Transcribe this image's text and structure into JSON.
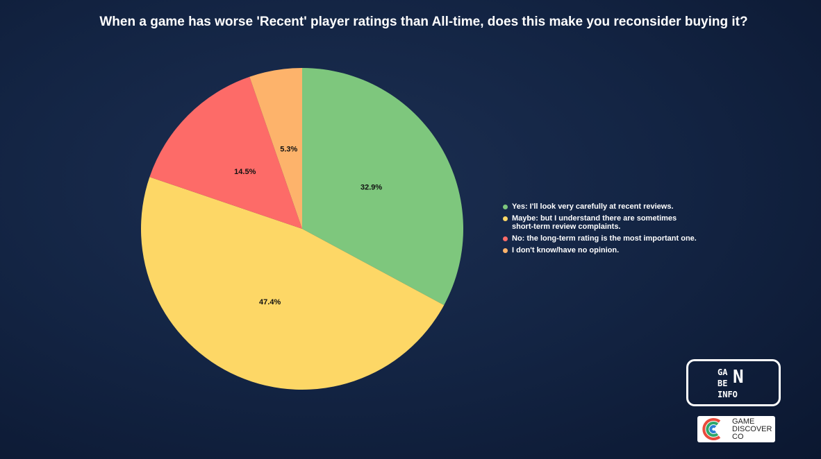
{
  "chart_data": {
    "type": "pie",
    "title": "When a game has worse 'Recent' player ratings than All-time, does this make you reconsider buying it?",
    "categories": [
      "Yes: I'll look very carefully at recent reviews.",
      "Maybe: but I understand there are sometimes\nshort-term review complaints.",
      "No: the long-term rating is the most important one.",
      "I don't know/have no opinion."
    ],
    "values": [
      32.9,
      47.4,
      14.5,
      5.3
    ],
    "value_labels": [
      "32.9%",
      "47.4%",
      "14.5%",
      "5.3%"
    ],
    "colors": [
      "#7ec77d",
      "#fdd766",
      "#fd6b68",
      "#fdb36b"
    ],
    "legend": "right"
  },
  "watermark": {
    "lines": [
      "GA",
      "BE",
      "INFO"
    ],
    "letter": "N"
  },
  "logo": {
    "lines": [
      "GAME",
      "DISCOVER",
      "CO"
    ]
  }
}
